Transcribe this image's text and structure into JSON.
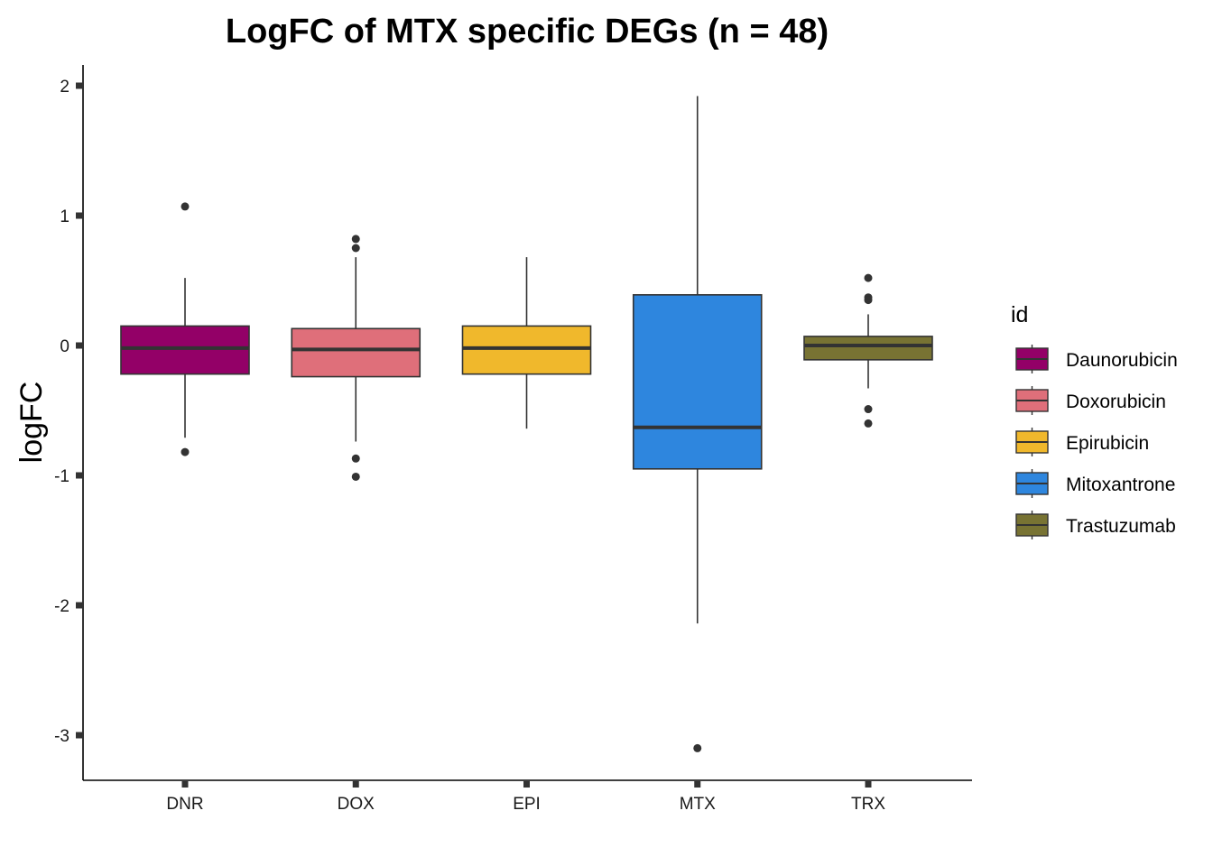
{
  "chart_data": {
    "type": "boxplot",
    "title": "LogFC of MTX specific DEGs (n = 48)",
    "xlabel": "",
    "ylabel": "logFC",
    "ylim": [
      -3.35,
      2.17
    ],
    "yticks": [
      2,
      1,
      0,
      -1,
      -2,
      -3
    ],
    "grid": false,
    "legend": {
      "title": "id",
      "position": "right"
    },
    "categories": [
      "DNR",
      "DOX",
      "EPI",
      "MTX",
      "TRX"
    ],
    "series": [
      {
        "name": "Daunorubicin",
        "category": "DNR",
        "color": "#930067",
        "q1": -0.22,
        "median": -0.02,
        "q3": 0.15,
        "whisker_low": -0.71,
        "whisker_high": 0.52,
        "outliers": [
          1.07,
          -0.82
        ]
      },
      {
        "name": "Doxorubicin",
        "category": "DOX",
        "color": "#DF6F7A",
        "q1": -0.24,
        "median": -0.03,
        "q3": 0.13,
        "whisker_low": -0.74,
        "whisker_high": 0.68,
        "outliers": [
          0.82,
          0.75,
          -0.87,
          -1.01
        ]
      },
      {
        "name": "Epirubicin",
        "category": "EPI",
        "color": "#F0B82C",
        "q1": -0.22,
        "median": -0.02,
        "q3": 0.15,
        "whisker_low": -0.64,
        "whisker_high": 0.68,
        "outliers": []
      },
      {
        "name": "Mitoxantrone",
        "category": "MTX",
        "color": "#2E86DE",
        "q1": -0.95,
        "median": -0.63,
        "q3": 0.39,
        "whisker_low": -2.14,
        "whisker_high": 1.92,
        "outliers": [
          -3.1
        ]
      },
      {
        "name": "Trastuzumab",
        "category": "TRX",
        "color": "#787333",
        "q1": -0.11,
        "median": 0.0,
        "q3": 0.07,
        "whisker_low": -0.33,
        "whisker_high": 0.24,
        "outliers": [
          0.52,
          0.37,
          0.35,
          -0.49,
          -0.6
        ]
      }
    ]
  }
}
